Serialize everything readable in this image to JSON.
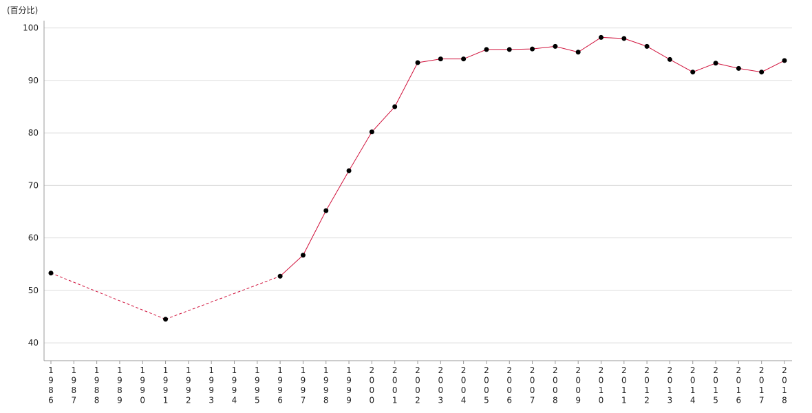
{
  "chart_data": {
    "type": "line",
    "title": "(百分比)",
    "categories": [
      "1986",
      "1987",
      "1988",
      "1989",
      "1990",
      "1991",
      "1992",
      "1993",
      "1994",
      "1995",
      "1996",
      "1997",
      "1998",
      "1999",
      "2000",
      "2001",
      "2002",
      "2003",
      "2004",
      "2005",
      "2006",
      "2007",
      "2008",
      "2009",
      "2010",
      "2011",
      "2012",
      "2013",
      "2014",
      "2015",
      "2016",
      "2017",
      "2018"
    ],
    "values": [
      53.3,
      null,
      null,
      null,
      null,
      44.5,
      null,
      null,
      null,
      null,
      52.7,
      56.7,
      65.2,
      72.8,
      80.2,
      85.0,
      93.4,
      94.1,
      94.1,
      95.9,
      95.9,
      96.0,
      96.5,
      95.4,
      98.2,
      98.0,
      96.5,
      94.0,
      91.6,
      93.3,
      92.3,
      91.6,
      93.8
    ],
    "color": "#d0103a",
    "marker_color": "#000000",
    "ylim": [
      36.6,
      101.4
    ],
    "yticks": [
      40,
      50,
      60,
      70,
      80,
      90,
      100
    ],
    "grid": true
  }
}
